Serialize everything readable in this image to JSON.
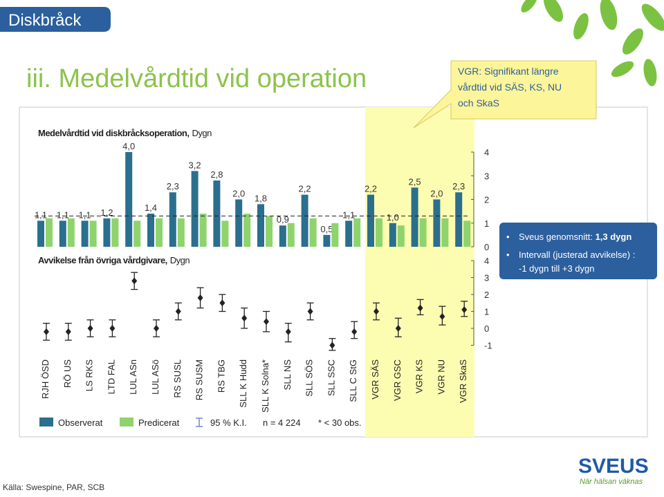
{
  "slide": {
    "section": "Diskbråck",
    "title": "iii. Medelvårdtid vid operation",
    "callout": [
      "VGR: Signifikant längre",
      "vårdtid vid SÄS, KS, NU",
      "och SkaS"
    ],
    "bullets": [
      {
        "text": "Sveus genomsnitt: ",
        "bold": "1,3 dygn"
      },
      {
        "text": "Intervall (justerad avvikelse) :",
        "line2": "-1 dygn till +3 dygn"
      }
    ],
    "source": "Källa: Swespine, PAR, SCB",
    "logo": "SVEUS",
    "slogan": "När hälsan väknas"
  },
  "chart_data": [
    {
      "type": "bar",
      "title": "Medelvårdtid vid diskbråcksoperation,",
      "unit": "Dygn",
      "categories": [
        "RJH ÖSD",
        "RÖ US",
        "LS RKS",
        "LTD FAL",
        "LUL ASn",
        "LUL ASö",
        "RS SUSL",
        "RS SUSM",
        "RS TBG",
        "SLL K Hudd",
        "SLL K Solna*",
        "SLL NS",
        "SLL SÖS",
        "SLL SSC",
        "SLL C StG",
        "VGR SÄS",
        "VGR GSC",
        "VGR KS",
        "VGR NU",
        "VGR SkaS"
      ],
      "series": [
        {
          "name": "Observerat",
          "color": "#2a6f8e",
          "values": [
            1.1,
            1.1,
            1.1,
            1.2,
            4.0,
            1.4,
            2.3,
            3.2,
            2.8,
            2.0,
            1.8,
            0.9,
            2.2,
            0.5,
            1.1,
            2.2,
            1.0,
            2.5,
            2.0,
            2.3
          ],
          "value_labels": [
            "1,1",
            "1,1",
            "1,1",
            "1,2",
            "4,0",
            "1,4",
            "2,3",
            "3,2",
            "2,8",
            "2,0",
            "1,8",
            "0,9",
            "2,2",
            "0,5",
            "1,1",
            "2,2",
            "1,0",
            "2,5",
            "2,0",
            "2,3"
          ]
        },
        {
          "name": "Predicerat",
          "color": "#8fd36c",
          "values": [
            1.2,
            1.2,
            1.1,
            1.2,
            1.1,
            1.2,
            1.2,
            1.4,
            1.1,
            1.4,
            1.3,
            1.0,
            1.2,
            1.0,
            1.2,
            1.2,
            0.9,
            1.2,
            1.2,
            1.1
          ]
        }
      ],
      "reference_line": 1.3,
      "ylim": [
        0,
        4
      ],
      "yticks": [
        0,
        1,
        2,
        3,
        4
      ],
      "ci_name": "95 % K.I.",
      "notes": [
        "n = 4 224",
        "* < 30 obs."
      ]
    },
    {
      "type": "errorbar",
      "title": "Avvikelse från övriga vårdgivare,",
      "unit": "Dygn",
      "color": "#222222",
      "values": [
        -0.2,
        -0.2,
        0,
        0,
        2.8,
        0,
        1.0,
        1.8,
        1.5,
        0.6,
        0.4,
        -0.2,
        1.0,
        -1.0,
        -0.2,
        1.0,
        0,
        1.2,
        0.7,
        1.1
      ],
      "low": [
        -0.7,
        -0.7,
        -0.5,
        -0.5,
        2.3,
        -0.5,
        0.5,
        1.2,
        1.0,
        0.0,
        -0.2,
        -0.8,
        0.5,
        -1.3,
        -0.6,
        0.5,
        -0.5,
        0.8,
        0.2,
        0.7
      ],
      "high": [
        0.3,
        0.3,
        0.5,
        0.5,
        3.3,
        0.5,
        1.5,
        2.4,
        2.0,
        1.2,
        1.0,
        0.3,
        1.5,
        -0.6,
        0.4,
        1.5,
        0.6,
        1.7,
        1.3,
        1.6
      ],
      "ylim": [
        -1,
        4
      ],
      "yticks": [
        -1,
        0,
        1,
        2,
        3,
        4
      ]
    }
  ]
}
